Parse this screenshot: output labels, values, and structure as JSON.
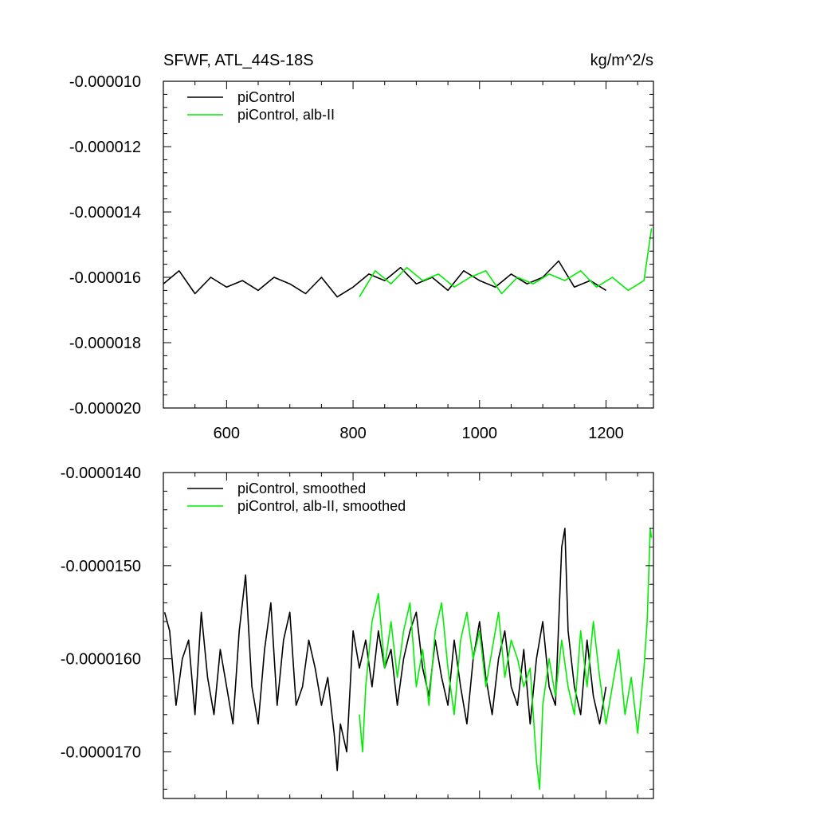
{
  "chart_data": [
    {
      "type": "line",
      "title": "SFWF, ATL_44S-18S",
      "units": "kg/m^2/s",
      "xlim": [
        500,
        1275
      ],
      "ylim": [
        -2e-05,
        -1e-05
      ],
      "x_ticks": [
        600,
        800,
        1000,
        1200
      ],
      "x_tick_labels": [
        "600",
        "800",
        "1000",
        "1200"
      ],
      "y_ticks": [
        -1e-05,
        -1.2e-05,
        -1.4e-05,
        -1.6e-05,
        -1.8e-05,
        -2e-05
      ],
      "y_tick_labels": [
        "-0.000010",
        "-0.000012",
        "-0.000014",
        "-0.000016",
        "-0.000018",
        "-0.000020"
      ],
      "grid": false,
      "legend_position": "top-left",
      "series": [
        {
          "name": "piControl",
          "color": "#000000",
          "x": [
            500,
            525,
            550,
            575,
            600,
            625,
            650,
            675,
            700,
            725,
            750,
            775,
            800,
            825,
            850,
            875,
            900,
            925,
            950,
            975,
            1000,
            1025,
            1050,
            1075,
            1100,
            1125,
            1150,
            1175,
            1200
          ],
          "y": [
            -1.62e-05,
            -1.58e-05,
            -1.65e-05,
            -1.6e-05,
            -1.63e-05,
            -1.61e-05,
            -1.64e-05,
            -1.6e-05,
            -1.62e-05,
            -1.65e-05,
            -1.6e-05,
            -1.66e-05,
            -1.63e-05,
            -1.59e-05,
            -1.61e-05,
            -1.57e-05,
            -1.62e-05,
            -1.6e-05,
            -1.64e-05,
            -1.58e-05,
            -1.61e-05,
            -1.63e-05,
            -1.59e-05,
            -1.62e-05,
            -1.6e-05,
            -1.55e-05,
            -1.63e-05,
            -1.61e-05,
            -1.64e-05
          ]
        },
        {
          "name": "piControl, alb-II",
          "color": "#00ee00",
          "x": [
            810,
            835,
            860,
            885,
            910,
            935,
            960,
            985,
            1010,
            1035,
            1060,
            1085,
            1110,
            1135,
            1160,
            1185,
            1210,
            1235,
            1260,
            1272
          ],
          "y": [
            -1.66e-05,
            -1.58e-05,
            -1.62e-05,
            -1.57e-05,
            -1.61e-05,
            -1.59e-05,
            -1.63e-05,
            -1.6e-05,
            -1.58e-05,
            -1.65e-05,
            -1.6e-05,
            -1.62e-05,
            -1.59e-05,
            -1.61e-05,
            -1.58e-05,
            -1.63e-05,
            -1.6e-05,
            -1.64e-05,
            -1.61e-05,
            -1.45e-05
          ]
        }
      ]
    },
    {
      "type": "line",
      "title": "",
      "xlim": [
        500,
        1275
      ],
      "ylim": [
        -1.75e-05,
        -1.4e-05
      ],
      "x_ticks": [
        600,
        800,
        1000,
        1200
      ],
      "x_tick_labels": [],
      "y_ticks": [
        -1.4e-05,
        -1.5e-05,
        -1.6e-05,
        -1.7e-05
      ],
      "y_tick_labels": [
        "-0.0000140",
        "-0.0000150",
        "-0.0000160",
        "-0.0000170"
      ],
      "grid": false,
      "legend_position": "top-left",
      "series": [
        {
          "name": "piControl, smoothed",
          "color": "#000000",
          "x": [
            502,
            510,
            520,
            530,
            540,
            550,
            560,
            570,
            580,
            590,
            600,
            610,
            620,
            630,
            640,
            650,
            660,
            670,
            680,
            690,
            700,
            710,
            720,
            730,
            740,
            750,
            760,
            770,
            775,
            780,
            790,
            800,
            810,
            820,
            830,
            840,
            850,
            860,
            870,
            880,
            890,
            900,
            910,
            920,
            930,
            940,
            950,
            960,
            970,
            980,
            990,
            1000,
            1010,
            1020,
            1030,
            1040,
            1050,
            1060,
            1070,
            1080,
            1090,
            1100,
            1110,
            1120,
            1130,
            1135,
            1140,
            1150,
            1160,
            1170,
            1180,
            1190,
            1200
          ],
          "y": [
            -1.55e-05,
            -1.57e-05,
            -1.65e-05,
            -1.6e-05,
            -1.58e-05,
            -1.66e-05,
            -1.55e-05,
            -1.62e-05,
            -1.66e-05,
            -1.59e-05,
            -1.63e-05,
            -1.67e-05,
            -1.57e-05,
            -1.51e-05,
            -1.63e-05,
            -1.67e-05,
            -1.59e-05,
            -1.54e-05,
            -1.65e-05,
            -1.58e-05,
            -1.55e-05,
            -1.65e-05,
            -1.63e-05,
            -1.58e-05,
            -1.61e-05,
            -1.65e-05,
            -1.62e-05,
            -1.68e-05,
            -1.72e-05,
            -1.67e-05,
            -1.7e-05,
            -1.57e-05,
            -1.61e-05,
            -1.58e-05,
            -1.63e-05,
            -1.57e-05,
            -1.61e-05,
            -1.59e-05,
            -1.65e-05,
            -1.6e-05,
            -1.57e-05,
            -1.55e-05,
            -1.61e-05,
            -1.64e-05,
            -1.58e-05,
            -1.62e-05,
            -1.65e-05,
            -1.58e-05,
            -1.63e-05,
            -1.67e-05,
            -1.6e-05,
            -1.56e-05,
            -1.62e-05,
            -1.66e-05,
            -1.6e-05,
            -1.57e-05,
            -1.63e-05,
            -1.65e-05,
            -1.59e-05,
            -1.67e-05,
            -1.6e-05,
            -1.56e-05,
            -1.63e-05,
            -1.65e-05,
            -1.48e-05,
            -1.46e-05,
            -1.57e-05,
            -1.63e-05,
            -1.66e-05,
            -1.58e-05,
            -1.64e-05,
            -1.67e-05,
            -1.63e-05
          ]
        },
        {
          "name": "piControl, alb-II, smoothed",
          "color": "#00ee00",
          "x": [
            810,
            815,
            820,
            830,
            840,
            850,
            860,
            870,
            880,
            890,
            900,
            910,
            920,
            930,
            940,
            950,
            960,
            970,
            980,
            990,
            1000,
            1010,
            1020,
            1030,
            1040,
            1050,
            1060,
            1070,
            1080,
            1090,
            1095,
            1100,
            1110,
            1120,
            1130,
            1140,
            1150,
            1160,
            1170,
            1180,
            1190,
            1200,
            1210,
            1220,
            1230,
            1240,
            1250,
            1260,
            1265,
            1270,
            1272
          ],
          "y": [
            -1.66e-05,
            -1.7e-05,
            -1.63e-05,
            -1.56e-05,
            -1.53e-05,
            -1.61e-05,
            -1.56e-05,
            -1.62e-05,
            -1.57e-05,
            -1.54e-05,
            -1.63e-05,
            -1.59e-05,
            -1.65e-05,
            -1.57e-05,
            -1.54e-05,
            -1.61e-05,
            -1.66e-05,
            -1.58e-05,
            -1.55e-05,
            -1.6e-05,
            -1.57e-05,
            -1.63e-05,
            -1.59e-05,
            -1.55e-05,
            -1.62e-05,
            -1.58e-05,
            -1.6e-05,
            -1.63e-05,
            -1.61e-05,
            -1.71e-05,
            -1.74e-05,
            -1.65e-05,
            -1.6e-05,
            -1.64e-05,
            -1.58e-05,
            -1.63e-05,
            -1.66e-05,
            -1.57e-05,
            -1.63e-05,
            -1.56e-05,
            -1.62e-05,
            -1.67e-05,
            -1.63e-05,
            -1.59e-05,
            -1.66e-05,
            -1.62e-05,
            -1.68e-05,
            -1.61e-05,
            -1.56e-05,
            -1.46e-05,
            -1.47e-05
          ]
        }
      ]
    }
  ]
}
